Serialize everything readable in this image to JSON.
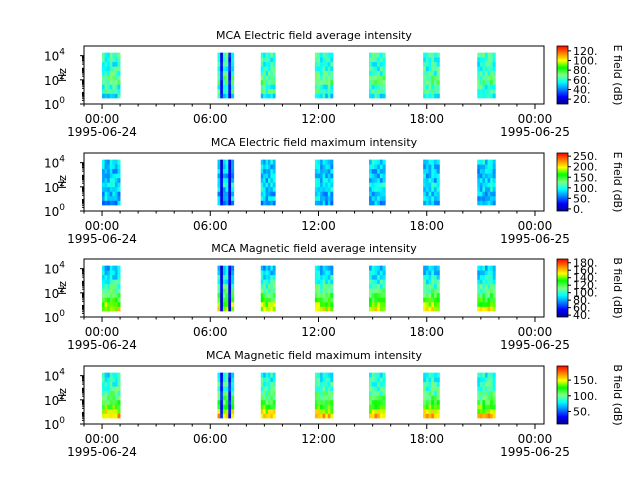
{
  "chart_data": [
    {
      "type": "heatmap",
      "title": "MCA  Electric field average intensity",
      "ylabel": "Hz",
      "colorbar_label": "E field (dB)",
      "colorbar_ticks": [
        "120.",
        "100.",
        "80.",
        "60.",
        "40.",
        "20."
      ],
      "colorbar_tick_values": [
        120,
        100,
        80,
        60,
        40,
        20
      ],
      "colorbar_range": [
        10,
        130
      ],
      "y_ticks": [
        "4",
        "2",
        "0"
      ],
      "y_tick_values": [
        4,
        2,
        0
      ],
      "x_ticks": [
        "00:00",
        "06:00",
        "12:00",
        "18:00",
        "00:00"
      ],
      "x_tick_hours": [
        0,
        6,
        12,
        18,
        24
      ],
      "x_dates": [
        "1995-06-24",
        "1995-06-25"
      ],
      "xlim_hours": [
        -1,
        24.5
      ],
      "ylim_log10_hz": [
        0,
        4.8
      ],
      "freq_band_log10": [
        0.5,
        4.25
      ],
      "segments_hours": [
        [
          0,
          1
        ],
        [
          6.4,
          7.3
        ],
        [
          8.8,
          9.6
        ],
        [
          11.8,
          12.8
        ],
        [
          14.8,
          15.7
        ],
        [
          17.8,
          18.7
        ],
        [
          20.8,
          21.8
        ]
      ],
      "value_profile": [
        55,
        65,
        60,
        70,
        68,
        62,
        60,
        58,
        60,
        62
      ],
      "dark_stripes": [
        [
          6.55,
          6.7
        ],
        [
          7.0,
          7.15
        ]
      ],
      "dark_stripe_value": 22
    },
    {
      "type": "heatmap",
      "title": "MCA  Electric field maximum intensity",
      "ylabel": "Hz",
      "colorbar_label": "E field (dB)",
      "colorbar_ticks": [
        "250.",
        "200.",
        "150.",
        "100.",
        "50.",
        "0."
      ],
      "colorbar_tick_values": [
        250,
        200,
        150,
        100,
        50,
        0
      ],
      "colorbar_range": [
        -10,
        265
      ],
      "y_ticks": [
        "4",
        "2",
        "0"
      ],
      "y_tick_values": [
        4,
        2,
        0
      ],
      "x_ticks": [
        "00:00",
        "06:00",
        "12:00",
        "18:00",
        "00:00"
      ],
      "x_tick_hours": [
        0,
        6,
        12,
        18,
        24
      ],
      "x_dates": [
        "1995-06-24",
        "1995-06-25"
      ],
      "xlim_hours": [
        -1,
        24.5
      ],
      "ylim_log10_hz": [
        0,
        4.8
      ],
      "freq_band_log10": [
        0.5,
        4.25
      ],
      "segments_hours": [
        [
          0,
          1
        ],
        [
          6.4,
          7.3
        ],
        [
          8.8,
          9.6
        ],
        [
          11.8,
          12.8
        ],
        [
          14.8,
          15.7
        ],
        [
          17.8,
          18.7
        ],
        [
          20.8,
          21.8
        ]
      ],
      "value_profile": [
        70,
        80,
        75,
        85,
        90,
        80,
        78,
        75,
        80,
        85
      ],
      "dark_stripes": [
        [
          6.55,
          6.7
        ],
        [
          7.0,
          7.15
        ]
      ],
      "dark_stripe_value": 5
    },
    {
      "type": "heatmap",
      "title": "MCA  Magnetic field average intensity",
      "ylabel": "Hz",
      "colorbar_label": "B field (dB)",
      "colorbar_ticks": [
        "180.",
        "160.",
        "140.",
        "120.",
        "100.",
        "80.",
        "60.",
        "40."
      ],
      "colorbar_tick_values": [
        180,
        160,
        140,
        120,
        100,
        80,
        60,
        40
      ],
      "colorbar_range": [
        35,
        190
      ],
      "y_ticks": [
        "4",
        "2",
        "0"
      ],
      "y_tick_values": [
        4,
        2,
        0
      ],
      "x_ticks": [
        "00:00",
        "06:00",
        "12:00",
        "18:00",
        "00:00"
      ],
      "x_tick_hours": [
        0,
        6,
        12,
        18,
        24
      ],
      "x_dates": [
        "1995-06-24",
        "1995-06-25"
      ],
      "xlim_hours": [
        -1,
        24.5
      ],
      "ylim_log10_hz": [
        0,
        4.8
      ],
      "freq_band_log10": [
        0.5,
        4.25
      ],
      "segments_hours": [
        [
          0,
          1
        ],
        [
          6.4,
          7.3
        ],
        [
          8.8,
          9.6
        ],
        [
          11.8,
          12.8
        ],
        [
          14.8,
          15.7
        ],
        [
          17.8,
          18.7
        ],
        [
          20.8,
          21.8
        ]
      ],
      "value_profile": [
        150,
        140,
        128,
        118,
        110,
        104,
        98,
        92,
        88,
        85
      ],
      "dark_stripes": [
        [
          6.55,
          6.7
        ],
        [
          7.0,
          7.15
        ]
      ],
      "dark_stripe_value": 45
    },
    {
      "type": "heatmap",
      "title": "MCA  Magnetic field maximum intensity",
      "ylabel": "Hz",
      "colorbar_label": "B field (dB)",
      "colorbar_ticks": [
        "150.",
        "100.",
        "50."
      ],
      "colorbar_tick_values": [
        150,
        100,
        50
      ],
      "colorbar_range": [
        10,
        195
      ],
      "y_ticks": [
        "4",
        "2",
        "0"
      ],
      "y_tick_values": [
        4,
        2,
        0
      ],
      "x_ticks": [
        "00:00",
        "06:00",
        "12:00",
        "18:00",
        "00:00"
      ],
      "x_tick_hours": [
        0,
        6,
        12,
        18,
        24
      ],
      "x_dates": [
        "1995-06-24",
        "1995-06-25"
      ],
      "xlim_hours": [
        -1,
        24.5
      ],
      "ylim_log10_hz": [
        0,
        4.8
      ],
      "freq_band_log10": [
        0.5,
        4.25
      ],
      "segments_hours": [
        [
          0,
          1
        ],
        [
          6.4,
          7.3
        ],
        [
          8.8,
          9.6
        ],
        [
          11.8,
          12.8
        ],
        [
          14.8,
          15.7
        ],
        [
          17.8,
          18.7
        ],
        [
          20.8,
          21.8
        ]
      ],
      "value_profile": [
        160,
        145,
        128,
        115,
        105,
        98,
        92,
        88,
        85,
        82
      ],
      "dark_stripes": [
        [
          6.55,
          6.7
        ],
        [
          7.0,
          7.15
        ]
      ],
      "dark_stripe_value": 30
    }
  ],
  "colors": {
    "colormap": [
      "#00008f",
      "#0000ff",
      "#0080ff",
      "#00ffff",
      "#80ff80",
      "#00ff00",
      "#ffff00",
      "#ff8000",
      "#ff0000"
    ]
  }
}
